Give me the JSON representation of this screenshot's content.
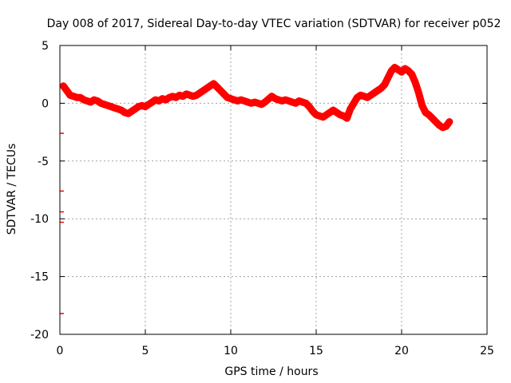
{
  "colors": {
    "series": "#ff0000",
    "grid": "#a0a0a0",
    "axis": "#000000",
    "background": "#ffffff"
  },
  "chart_data": {
    "type": "scatter",
    "title": "Day 008 of 2017, Sidereal Day-to-day VTEC variation (SDTVAR) for receiver p052",
    "xlabel": "GPS time / hours",
    "ylabel": "SDTVAR / TECUs",
    "xlim": [
      0,
      25
    ],
    "ylim": [
      -20,
      5
    ],
    "xticks": [
      0,
      5,
      10,
      15,
      20,
      25
    ],
    "yticks": [
      -20,
      -15,
      -10,
      -5,
      0,
      5
    ],
    "xtick_labels": [
      "0",
      "5",
      "10",
      "15",
      "20",
      "25"
    ],
    "ytick_labels": [
      "-20",
      "-15",
      "-10",
      "-5",
      "0",
      "5"
    ],
    "grid": true,
    "series": [
      {
        "name": "SDTVAR",
        "x": [
          0.2,
          0.4,
          0.6,
          0.8,
          1.0,
          1.2,
          1.4,
          1.6,
          1.8,
          2.0,
          2.2,
          2.4,
          2.6,
          2.8,
          3.0,
          3.2,
          3.4,
          3.6,
          3.8,
          4.0,
          4.2,
          4.4,
          4.6,
          4.8,
          5.0,
          5.2,
          5.4,
          5.6,
          5.8,
          6.0,
          6.2,
          6.4,
          6.6,
          6.8,
          7.0,
          7.2,
          7.4,
          7.6,
          7.8,
          8.0,
          8.2,
          8.4,
          8.6,
          8.8,
          9.0,
          9.2,
          9.4,
          9.6,
          9.8,
          10.0,
          10.2,
          10.4,
          10.6,
          10.8,
          11.0,
          11.2,
          11.4,
          11.6,
          11.8,
          12.0,
          12.4,
          12.6,
          12.8,
          13.0,
          13.2,
          13.4,
          13.6,
          13.8,
          14.0,
          14.2,
          14.4,
          14.6,
          14.8,
          15.0,
          15.2,
          15.4,
          15.6,
          15.8,
          16.0,
          16.2,
          16.4,
          16.6,
          16.8,
          17.0,
          17.2,
          17.4,
          17.6,
          17.8,
          18.0,
          18.2,
          18.4,
          18.6,
          18.8,
          19.0,
          19.2,
          19.4,
          19.6,
          19.8,
          20.0,
          20.2,
          20.4,
          20.6,
          20.8,
          21.0,
          21.2,
          21.4,
          21.6,
          21.8,
          22.0,
          22.2,
          22.4,
          22.6,
          22.8
        ],
        "y": [
          1.5,
          1.1,
          0.7,
          0.6,
          0.5,
          0.5,
          0.3,
          0.2,
          0.1,
          0.3,
          0.2,
          0.0,
          -0.1,
          -0.2,
          -0.3,
          -0.4,
          -0.5,
          -0.6,
          -0.8,
          -0.9,
          -0.7,
          -0.5,
          -0.3,
          -0.2,
          -0.3,
          -0.1,
          0.1,
          0.3,
          0.2,
          0.4,
          0.3,
          0.5,
          0.6,
          0.5,
          0.7,
          0.6,
          0.8,
          0.7,
          0.6,
          0.7,
          0.9,
          1.1,
          1.3,
          1.5,
          1.7,
          1.4,
          1.1,
          0.8,
          0.5,
          0.4,
          0.3,
          0.2,
          0.3,
          0.2,
          0.1,
          0.0,
          0.1,
          0.0,
          -0.1,
          0.1,
          0.6,
          0.4,
          0.3,
          0.2,
          0.3,
          0.2,
          0.1,
          0.0,
          0.2,
          0.1,
          0.0,
          -0.3,
          -0.7,
          -1.0,
          -1.1,
          -1.2,
          -1.0,
          -0.8,
          -0.6,
          -0.8,
          -1.0,
          -1.1,
          -1.3,
          -0.5,
          0.0,
          0.5,
          0.7,
          0.6,
          0.5,
          0.7,
          0.9,
          1.1,
          1.3,
          1.6,
          2.2,
          2.8,
          3.1,
          2.9,
          2.7,
          3.0,
          2.8,
          2.5,
          1.8,
          0.9,
          -0.2,
          -0.8,
          -1.0,
          -1.3,
          -1.6,
          -1.9,
          -2.1,
          -2.0,
          -1.6
        ]
      }
    ],
    "isolated_marks": {
      "x": [
        0,
        0,
        0,
        0,
        0
      ],
      "y": [
        -2.6,
        -7.6,
        -9.4,
        -10.3,
        -18.2
      ]
    }
  }
}
